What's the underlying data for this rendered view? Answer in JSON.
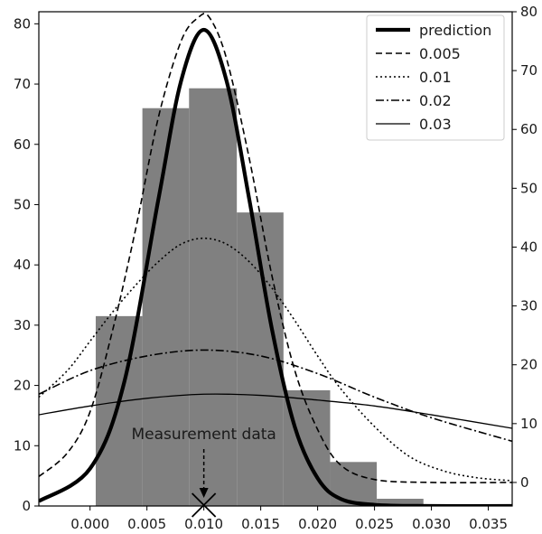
{
  "chart_data": {
    "type": "bar",
    "x_range": [
      -0.0045,
      0.0371
    ],
    "ylim_left": [
      0,
      82
    ],
    "ylim_right": [
      -4,
      80
    ],
    "xticks": [
      0.0,
      0.005,
      0.01,
      0.015,
      0.02,
      0.025,
      0.03,
      0.035
    ],
    "xtick_labels": [
      "0.000",
      "0.005",
      "0.010",
      "0.015",
      "0.020",
      "0.025",
      "0.030",
      "0.035"
    ],
    "yticks_left": [
      0,
      10,
      20,
      30,
      40,
      50,
      60,
      70,
      80
    ],
    "yticks_right": [
      0,
      10,
      20,
      30,
      40,
      50,
      60,
      70,
      80
    ],
    "grid": false,
    "legend_position": "top-right",
    "histogram": {
      "bar_color": "#808080",
      "bins": [
        {
          "x0": 0.0005,
          "x1": 0.0046,
          "value": 31.5
        },
        {
          "x0": 0.0046,
          "x1": 0.0087,
          "value": 66.0
        },
        {
          "x0": 0.0087,
          "x1": 0.0129,
          "value": 69.3
        },
        {
          "x0": 0.0129,
          "x1": 0.017,
          "value": 48.7
        },
        {
          "x0": 0.017,
          "x1": 0.0211,
          "value": 19.2
        },
        {
          "x0": 0.0211,
          "x1": 0.0252,
          "value": 7.3
        },
        {
          "x0": 0.0252,
          "x1": 0.0293,
          "value": 1.2
        }
      ]
    },
    "series": [
      {
        "name": "prediction",
        "style": "solid-thick",
        "axis": "left",
        "x": [
          -0.0045,
          0.0,
          0.003,
          0.006,
          0.008,
          0.01,
          0.012,
          0.014,
          0.016,
          0.018,
          0.02,
          0.022,
          0.025,
          0.03,
          0.0371
        ],
        "y": [
          0.8,
          6.2,
          20.5,
          50.8,
          70.5,
          79.0,
          70.5,
          50.8,
          29.2,
          13.1,
          4.6,
          1.2,
          0.2,
          0.0,
          0.0
        ]
      },
      {
        "name": "0.005",
        "style": "dashed",
        "axis": "right",
        "x": [
          -0.0045,
          -0.002,
          0.0,
          0.002,
          0.004,
          0.006,
          0.008,
          0.0095,
          0.0105,
          0.012,
          0.014,
          0.016,
          0.018,
          0.02,
          0.022,
          0.025,
          0.03,
          0.0371
        ],
        "y": [
          1.0,
          5.0,
          12.0,
          26.0,
          43.0,
          62.0,
          75.0,
          79.0,
          79.0,
          72.0,
          55.0,
          35.0,
          19.0,
          9.0,
          3.0,
          0.5,
          0.0,
          0.0
        ]
      },
      {
        "name": "0.01",
        "style": "dotted",
        "axis": "right",
        "x": [
          -0.0045,
          -0.002,
          0.0,
          0.002,
          0.004,
          0.006,
          0.008,
          0.01,
          0.012,
          0.014,
          0.016,
          0.018,
          0.02,
          0.022,
          0.025,
          0.028,
          0.031,
          0.034,
          0.0371
        ],
        "y": [
          14.5,
          19.0,
          24.0,
          29.0,
          33.5,
          37.5,
          40.5,
          41.5,
          40.5,
          37.5,
          33.0,
          27.5,
          21.5,
          16.0,
          9.5,
          4.5,
          2.0,
          0.8,
          0.3
        ]
      },
      {
        "name": "0.02",
        "style": "dashdot",
        "axis": "right",
        "x": [
          -0.0045,
          0.0,
          0.005,
          0.01,
          0.015,
          0.02,
          0.025,
          0.03,
          0.0371
        ],
        "y": [
          15.0,
          19.0,
          21.5,
          22.5,
          21.5,
          18.5,
          14.5,
          11.0,
          7.0
        ]
      },
      {
        "name": "0.03",
        "style": "solid-thin",
        "axis": "right",
        "x": [
          -0.0045,
          0.0,
          0.005,
          0.01,
          0.015,
          0.02,
          0.025,
          0.03,
          0.0371
        ],
        "y": [
          11.5,
          13.0,
          14.3,
          15.0,
          14.8,
          14.0,
          13.0,
          11.5,
          9.2
        ]
      }
    ],
    "annotation": {
      "text": "Measurement data",
      "x": 0.01
    }
  }
}
